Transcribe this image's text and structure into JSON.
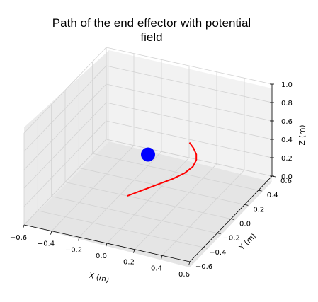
{
  "chart_data": {
    "type": "line3d",
    "title": [
      "Path of the end effector with potential",
      "field"
    ],
    "xlabel": "X (m)",
    "ylabel": "Y (m)",
    "zlabel": "Z (m)",
    "xlim": [
      -0.6,
      0.6
    ],
    "ylim": [
      -0.6,
      0.6
    ],
    "zlim": [
      0.0,
      1.0
    ],
    "grid": true,
    "x_ticks": [
      "−0.6",
      "−0.4",
      "−0.2",
      "0.0",
      "0.2",
      "0.4",
      "0.6"
    ],
    "y_ticks": [
      "−0.6",
      "−0.4",
      "−0.2",
      "0.0",
      "0.2",
      "0.4",
      "0.6"
    ],
    "z_ticks": [
      "0.0",
      "0.2",
      "0.4",
      "0.6",
      "0.8",
      "1.0"
    ],
    "x_tick_values": [
      -0.6,
      -0.4,
      -0.2,
      0.0,
      0.2,
      0.4,
      0.6
    ],
    "y_tick_values": [
      -0.6,
      -0.4,
      -0.2,
      0.0,
      0.2,
      0.4,
      0.6
    ],
    "z_tick_values": [
      0.0,
      0.2,
      0.4,
      0.6,
      0.8,
      1.0
    ],
    "series": [
      {
        "kind": "path",
        "color": "#ff0000",
        "points": [
          [
            -0.15,
            0.0,
            0.0
          ],
          [
            -0.05,
            0.02,
            0.08
          ],
          [
            0.05,
            0.04,
            0.16
          ],
          [
            0.15,
            0.06,
            0.24
          ],
          [
            0.23,
            0.07,
            0.32
          ],
          [
            0.29,
            0.07,
            0.41
          ],
          [
            0.32,
            0.06,
            0.5
          ],
          [
            0.33,
            0.04,
            0.58
          ],
          [
            0.32,
            0.02,
            0.66
          ],
          [
            0.3,
            0.0,
            0.73
          ]
        ]
      },
      {
        "kind": "obstacle",
        "color": "#0000ff",
        "center": [
          0.0,
          0.0,
          0.5
        ],
        "radius": 0.05
      }
    ]
  }
}
